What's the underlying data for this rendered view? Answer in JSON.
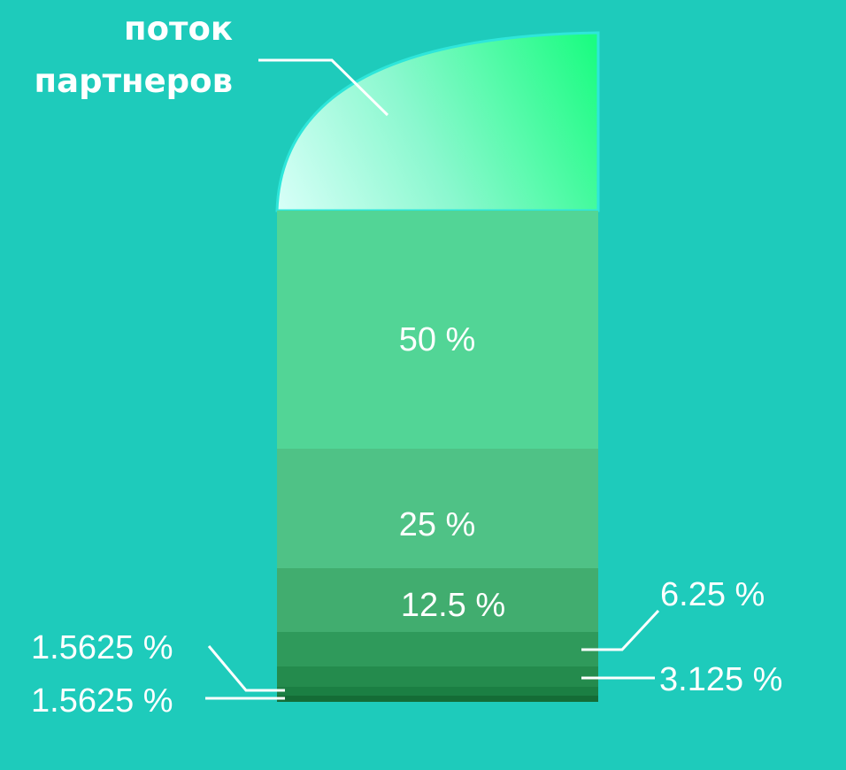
{
  "title": {
    "line1": "поток",
    "line2": "партнеров"
  },
  "segments": [
    {
      "label": "50 %",
      "value": 50,
      "color": "#52d596"
    },
    {
      "label": "25 %",
      "value": 25,
      "color": "#4fc286"
    },
    {
      "label": "12.5 %",
      "value": 12.5,
      "color": "#41ad6f"
    },
    {
      "label": "6.25 %",
      "value": 6.25,
      "color": "#2f9a5b"
    },
    {
      "label": "3.125 %",
      "value": 3.125,
      "color": "#248b4d"
    },
    {
      "label": "1.5625  %",
      "value": 1.5625,
      "color": "#1b7f43"
    },
    {
      "label": "1.5625  %",
      "value": 1.5625,
      "color": "#146c36"
    }
  ],
  "colors": {
    "background": "#1ecbbb",
    "cap_light": "#d8fff8",
    "cap_dark": "#1cfc82",
    "leader_line": "#ffffff"
  }
}
